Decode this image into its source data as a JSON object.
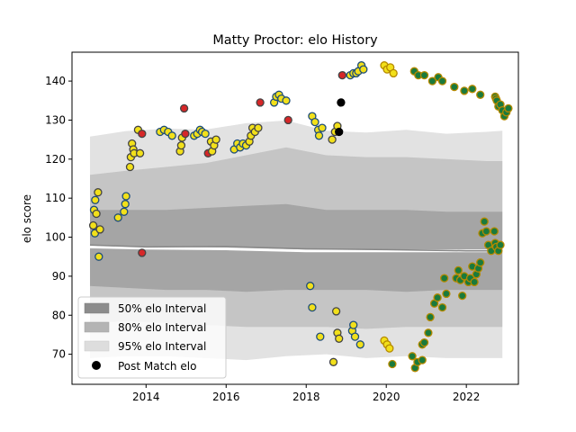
{
  "chart_data": {
    "type": "scatter",
    "title": "Matty Proctor: elo History",
    "xlabel": "",
    "ylabel": "elo score",
    "xlim": [
      2012.15,
      2023.3
    ],
    "ylim": [
      62.3,
      147.4
    ],
    "x_ticks": [
      2014,
      2016,
      2018,
      2020,
      2022
    ],
    "y_ticks": [
      70,
      80,
      90,
      100,
      110,
      120,
      130,
      140
    ],
    "grid": false,
    "legend_position": "lower-left",
    "legend": [
      {
        "label": "50% elo Interval",
        "kind": "patch",
        "color": "#8c8c8c"
      },
      {
        "label": "80% elo Interval",
        "kind": "patch",
        "color": "#b4b4b4"
      },
      {
        "label": "95% elo Interval",
        "kind": "patch",
        "color": "#dddddd"
      },
      {
        "label": "Post Match elo",
        "kind": "marker",
        "color": "#000000"
      }
    ],
    "bands": {
      "x": [
        2012.6,
        2013.5,
        2014.5,
        2015.5,
        2016.5,
        2017.5,
        2018.5,
        2019.5,
        2020.5,
        2021.5,
        2022.5,
        2022.9
      ],
      "p95_upper": [
        125.8,
        127.2,
        127.8,
        127.6,
        129.2,
        129.9,
        127.3,
        126.8,
        127.5,
        126.5,
        127.0,
        127.3
      ],
      "p80_upper": [
        116.0,
        117.0,
        118.0,
        119.0,
        121.0,
        123.0,
        121.0,
        120.5,
        120.5,
        120.0,
        119.5,
        119.5
      ],
      "p50_upper": [
        107.0,
        107.0,
        107.0,
        107.5,
        108.0,
        108.5,
        107.0,
        107.0,
        107.0,
        106.5,
        106.5,
        106.5
      ],
      "p50_lower": [
        87.5,
        87.0,
        86.5,
        86.5,
        86.0,
        86.5,
        86.5,
        86.5,
        86.0,
        86.5,
        86.5,
        86.5
      ],
      "p80_lower": [
        78.0,
        78.5,
        78.0,
        77.5,
        77.0,
        77.0,
        77.0,
        76.5,
        77.0,
        77.0,
        77.0,
        77.0
      ],
      "p95_lower": [
        69.0,
        69.5,
        69.5,
        69.0,
        68.5,
        69.5,
        70.0,
        69.0,
        69.5,
        69.0,
        69.0,
        69.0
      ]
    },
    "center_lines": {
      "x": [
        2012.6,
        2014.0,
        2016.0,
        2018.0,
        2020.0,
        2022.0,
        2022.9
      ],
      "median": [
        98.0,
        97.5,
        97.6,
        97.0,
        96.8,
        96.5,
        96.5
      ],
      "median_light": [
        97.5,
        97.2,
        97.0,
        96.5,
        96.5,
        96.5,
        96.5
      ]
    },
    "series": [
      {
        "name": "Post Match elo",
        "points": [
          [
            2012.68,
            103.0,
            "yellow",
            "#444444"
          ],
          [
            2012.7,
            107.0,
            "yellow",
            "#1f4e79"
          ],
          [
            2012.73,
            109.5,
            "yellow",
            "#1f4e79"
          ],
          [
            2012.76,
            106.0,
            "yellow",
            "#444444"
          ],
          [
            2012.8,
            111.5,
            "yellow",
            "#444444"
          ],
          [
            2012.82,
            95.0,
            "yellow",
            "#1f4e79"
          ],
          [
            2012.72,
            101.0,
            "yellow",
            "#1f4e79"
          ],
          [
            2012.85,
            102.0,
            "yellow",
            "#444444"
          ],
          [
            2013.3,
            105.0,
            "yellow",
            "#1f4e79"
          ],
          [
            2013.45,
            106.5,
            "yellow",
            "#1f4e79"
          ],
          [
            2013.48,
            108.5,
            "yellow",
            "#1f4e79"
          ],
          [
            2013.5,
            110.5,
            "yellow",
            "#1f4e79"
          ],
          [
            2013.6,
            118.0,
            "yellow",
            "#444444"
          ],
          [
            2013.62,
            120.5,
            "yellow",
            "#444444"
          ],
          [
            2013.65,
            124.0,
            "yellow",
            "#444444"
          ],
          [
            2013.68,
            122.5,
            "yellow",
            "#444444"
          ],
          [
            2013.7,
            121.5,
            "yellow",
            "#444444"
          ],
          [
            2013.8,
            127.5,
            "yellow",
            "#444444"
          ],
          [
            2013.85,
            121.5,
            "yellow",
            "#444444"
          ],
          [
            2013.9,
            126.5,
            "#d62728",
            "#444444"
          ],
          [
            2013.9,
            96.0,
            "#d62728",
            "#444444"
          ],
          [
            2014.35,
            127.0,
            "yellow",
            "#1f4e79"
          ],
          [
            2014.45,
            127.5,
            "yellow",
            "#1f4e79"
          ],
          [
            2014.55,
            127.0,
            "yellow",
            "#1f4e79"
          ],
          [
            2014.65,
            126.0,
            "yellow",
            "#1f4e79"
          ],
          [
            2014.85,
            122.0,
            "yellow",
            "#444444"
          ],
          [
            2014.88,
            123.5,
            "yellow",
            "#444444"
          ],
          [
            2014.9,
            125.5,
            "yellow",
            "#444444"
          ],
          [
            2014.95,
            133.0,
            "#d62728",
            "#444444"
          ],
          [
            2014.98,
            126.5,
            "#d62728",
            "#444444"
          ],
          [
            2015.2,
            126.0,
            "yellow",
            "#1f4e79"
          ],
          [
            2015.28,
            126.5,
            "yellow",
            "#1f4e79"
          ],
          [
            2015.35,
            127.5,
            "yellow",
            "#1f4e79"
          ],
          [
            2015.4,
            127.0,
            "yellow",
            "#1f4e79"
          ],
          [
            2015.48,
            126.5,
            "yellow",
            "#1f4e79"
          ],
          [
            2015.55,
            121.5,
            "#d62728",
            "#444444"
          ],
          [
            2015.62,
            124.5,
            "yellow",
            "#444444"
          ],
          [
            2015.65,
            122.0,
            "yellow",
            "#444444"
          ],
          [
            2015.7,
            123.5,
            "yellow",
            "#444444"
          ],
          [
            2015.75,
            125.0,
            "yellow",
            "#444444"
          ],
          [
            2016.2,
            122.5,
            "yellow",
            "#1f4e79"
          ],
          [
            2016.28,
            124.0,
            "yellow",
            "#1f4e79"
          ],
          [
            2016.35,
            123.0,
            "yellow",
            "#1f4e79"
          ],
          [
            2016.42,
            124.0,
            "yellow",
            "#1f4e79"
          ],
          [
            2016.5,
            123.5,
            "yellow",
            "#1f4e79"
          ],
          [
            2016.58,
            124.5,
            "yellow",
            "#444444"
          ],
          [
            2016.62,
            126.0,
            "yellow",
            "#444444"
          ],
          [
            2016.66,
            128.0,
            "yellow",
            "#444444"
          ],
          [
            2016.72,
            127.0,
            "yellow",
            "#444444"
          ],
          [
            2016.8,
            128.0,
            "yellow",
            "#444444"
          ],
          [
            2016.85,
            134.5,
            "#d62728",
            "#444444"
          ],
          [
            2017.2,
            134.5,
            "yellow",
            "#1f4e79"
          ],
          [
            2017.25,
            136.0,
            "yellow",
            "#1f4e79"
          ],
          [
            2017.32,
            136.5,
            "yellow",
            "#1f4e79"
          ],
          [
            2017.38,
            135.5,
            "yellow",
            "#1f4e79"
          ],
          [
            2017.5,
            135.0,
            "yellow",
            "#1f4e79"
          ],
          [
            2017.55,
            130.0,
            "#d62728",
            "#444444"
          ],
          [
            2018.1,
            87.5,
            "yellow",
            "#1f4e79"
          ],
          [
            2018.15,
            82.0,
            "yellow",
            "#1f4e79"
          ],
          [
            2018.35,
            74.5,
            "yellow",
            "#1f4e79"
          ],
          [
            2018.15,
            131.0,
            "yellow",
            "#1f4e79"
          ],
          [
            2018.22,
            129.5,
            "yellow",
            "#1f4e79"
          ],
          [
            2018.3,
            127.5,
            "yellow",
            "#1f4e79"
          ],
          [
            2018.32,
            126.0,
            "yellow",
            "#1f4e79"
          ],
          [
            2018.4,
            128.0,
            "yellow",
            "#1f4e79"
          ],
          [
            2018.65,
            125.0,
            "yellow",
            "#444444"
          ],
          [
            2018.72,
            127.0,
            "yellow",
            "#444444"
          ],
          [
            2018.78,
            128.5,
            "yellow",
            "#444444"
          ],
          [
            2018.82,
            127.0,
            "black",
            "#000000"
          ],
          [
            2018.87,
            134.5,
            "black",
            "#000000"
          ],
          [
            2018.9,
            141.5,
            "#d62728",
            "#444444"
          ],
          [
            2018.68,
            68.0,
            "yellow",
            "#444444"
          ],
          [
            2018.75,
            81.0,
            "yellow",
            "#444444"
          ],
          [
            2018.78,
            75.5,
            "yellow",
            "#444444"
          ],
          [
            2018.82,
            74.0,
            "yellow",
            "#444444"
          ],
          [
            2019.1,
            141.5,
            "yellow",
            "#1f4e79"
          ],
          [
            2019.18,
            142.0,
            "yellow",
            "#1f4e79"
          ],
          [
            2019.25,
            142.0,
            "yellow",
            "#1f4e79"
          ],
          [
            2019.3,
            142.5,
            "yellow",
            "#1f4e79"
          ],
          [
            2019.38,
            144.0,
            "yellow",
            "#1f4e79"
          ],
          [
            2019.43,
            143.0,
            "yellow",
            "#1f4e79"
          ],
          [
            2019.15,
            76.0,
            "yellow",
            "#1f4e79"
          ],
          [
            2019.18,
            77.5,
            "yellow",
            "#1f4e79"
          ],
          [
            2019.22,
            74.5,
            "yellow",
            "#1f4e79"
          ],
          [
            2019.35,
            72.5,
            "yellow",
            "#1f4e79"
          ],
          [
            2019.95,
            144.0,
            "yellow",
            "#b58900"
          ],
          [
            2020.02,
            143.0,
            "yellow",
            "#b58900"
          ],
          [
            2020.1,
            143.5,
            "yellow",
            "#b58900"
          ],
          [
            2020.18,
            142.0,
            "yellow",
            "#b58900"
          ],
          [
            2019.95,
            73.5,
            "yellow",
            "#b58900"
          ],
          [
            2020.02,
            72.5,
            "yellow",
            "#b58900"
          ],
          [
            2020.08,
            71.5,
            "yellow",
            "#b58900"
          ],
          [
            2020.15,
            67.5,
            "#1a7a3c",
            "#b58900"
          ],
          [
            2020.7,
            142.5,
            "#1a7a3c",
            "#b58900"
          ],
          [
            2020.8,
            141.5,
            "#1a7a3c",
            "#b58900"
          ],
          [
            2020.95,
            141.5,
            "#1a7a3c",
            "#b58900"
          ],
          [
            2021.15,
            140.0,
            "#1a7a3c",
            "#b58900"
          ],
          [
            2021.3,
            141.0,
            "#1a7a3c",
            "#b58900"
          ],
          [
            2021.4,
            140.0,
            "#1a7a3c",
            "#b58900"
          ],
          [
            2021.7,
            138.5,
            "#1a7a3c",
            "#b58900"
          ],
          [
            2021.95,
            137.5,
            "#1a7a3c",
            "#b58900"
          ],
          [
            2022.15,
            138.0,
            "#1a7a3c",
            "#b58900"
          ],
          [
            2022.35,
            136.5,
            "#1a7a3c",
            "#b58900"
          ],
          [
            2020.65,
            69.5,
            "#1a7a3c",
            "#b58900"
          ],
          [
            2020.72,
            66.5,
            "#1a7a3c",
            "#b58900"
          ],
          [
            2020.78,
            68.0,
            "#1a7a3c",
            "#b58900"
          ],
          [
            2020.9,
            72.5,
            "#1a7a3c",
            "#b58900"
          ],
          [
            2020.95,
            73.0,
            "#1a7a3c",
            "#b58900"
          ],
          [
            2020.9,
            68.5,
            "#1a7a3c",
            "#b58900"
          ],
          [
            2021.05,
            75.5,
            "#1a7a3c",
            "#b58900"
          ],
          [
            2021.1,
            79.5,
            "#1a7a3c",
            "#b58900"
          ],
          [
            2021.2,
            83.0,
            "#1a7a3c",
            "#b58900"
          ],
          [
            2021.28,
            84.5,
            "#1a7a3c",
            "#b58900"
          ],
          [
            2021.4,
            82.0,
            "#1a7a3c",
            "#b58900"
          ],
          [
            2021.5,
            85.5,
            "#1a7a3c",
            "#b58900"
          ],
          [
            2021.45,
            89.5,
            "#1a7a3c",
            "#b58900"
          ],
          [
            2021.75,
            89.5,
            "#1a7a3c",
            "#b58900"
          ],
          [
            2021.8,
            91.5,
            "#1a7a3c",
            "#b58900"
          ],
          [
            2021.85,
            89.0,
            "#1a7a3c",
            "#b58900"
          ],
          [
            2021.9,
            85.0,
            "#1a7a3c",
            "#b58900"
          ],
          [
            2021.95,
            90.0,
            "#1a7a3c",
            "#b58900"
          ],
          [
            2022.05,
            88.5,
            "#1a7a3c",
            "#b58900"
          ],
          [
            2022.1,
            89.5,
            "#1a7a3c",
            "#b58900"
          ],
          [
            2022.15,
            92.5,
            "#1a7a3c",
            "#b58900"
          ],
          [
            2022.2,
            88.5,
            "#1a7a3c",
            "#b58900"
          ],
          [
            2022.25,
            90.5,
            "#1a7a3c",
            "#b58900"
          ],
          [
            2022.3,
            92.0,
            "#1a7a3c",
            "#b58900"
          ],
          [
            2022.35,
            93.5,
            "#1a7a3c",
            "#b58900"
          ],
          [
            2022.4,
            101.0,
            "#1a7a3c",
            "#b58900"
          ],
          [
            2022.45,
            104.0,
            "#1a7a3c",
            "#b58900"
          ],
          [
            2022.5,
            101.5,
            "#1a7a3c",
            "#b58900"
          ],
          [
            2022.55,
            98.0,
            "#1a7a3c",
            "#b58900"
          ],
          [
            2022.62,
            96.5,
            "#1a7a3c",
            "#b58900"
          ],
          [
            2022.7,
            101.5,
            "#1a7a3c",
            "#b58900"
          ],
          [
            2022.72,
            98.5,
            "#1a7a3c",
            "#b58900"
          ],
          [
            2022.75,
            97.5,
            "#1a7a3c",
            "#b58900"
          ],
          [
            2022.8,
            96.5,
            "#1a7a3c",
            "#b58900"
          ],
          [
            2022.85,
            98.0,
            "#1a7a3c",
            "#b58900"
          ],
          [
            2022.72,
            136.0,
            "#1a7a3c",
            "#b58900"
          ],
          [
            2022.74,
            135.5,
            "#1a7a3c",
            "#b58900"
          ],
          [
            2022.76,
            135.0,
            "#1a7a3c",
            "#b58900"
          ],
          [
            2022.8,
            133.5,
            "#1a7a3c",
            "#b58900"
          ],
          [
            2022.85,
            134.0,
            "#1a7a3c",
            "#b58900"
          ],
          [
            2022.9,
            132.5,
            "#1a7a3c",
            "#b58900"
          ],
          [
            2022.95,
            131.0,
            "#1a7a3c",
            "#b58900"
          ],
          [
            2023.0,
            132.0,
            "#1a7a3c",
            "#b58900"
          ],
          [
            2023.05,
            133.0,
            "#1a7a3c",
            "#b58900"
          ]
        ]
      }
    ]
  }
}
